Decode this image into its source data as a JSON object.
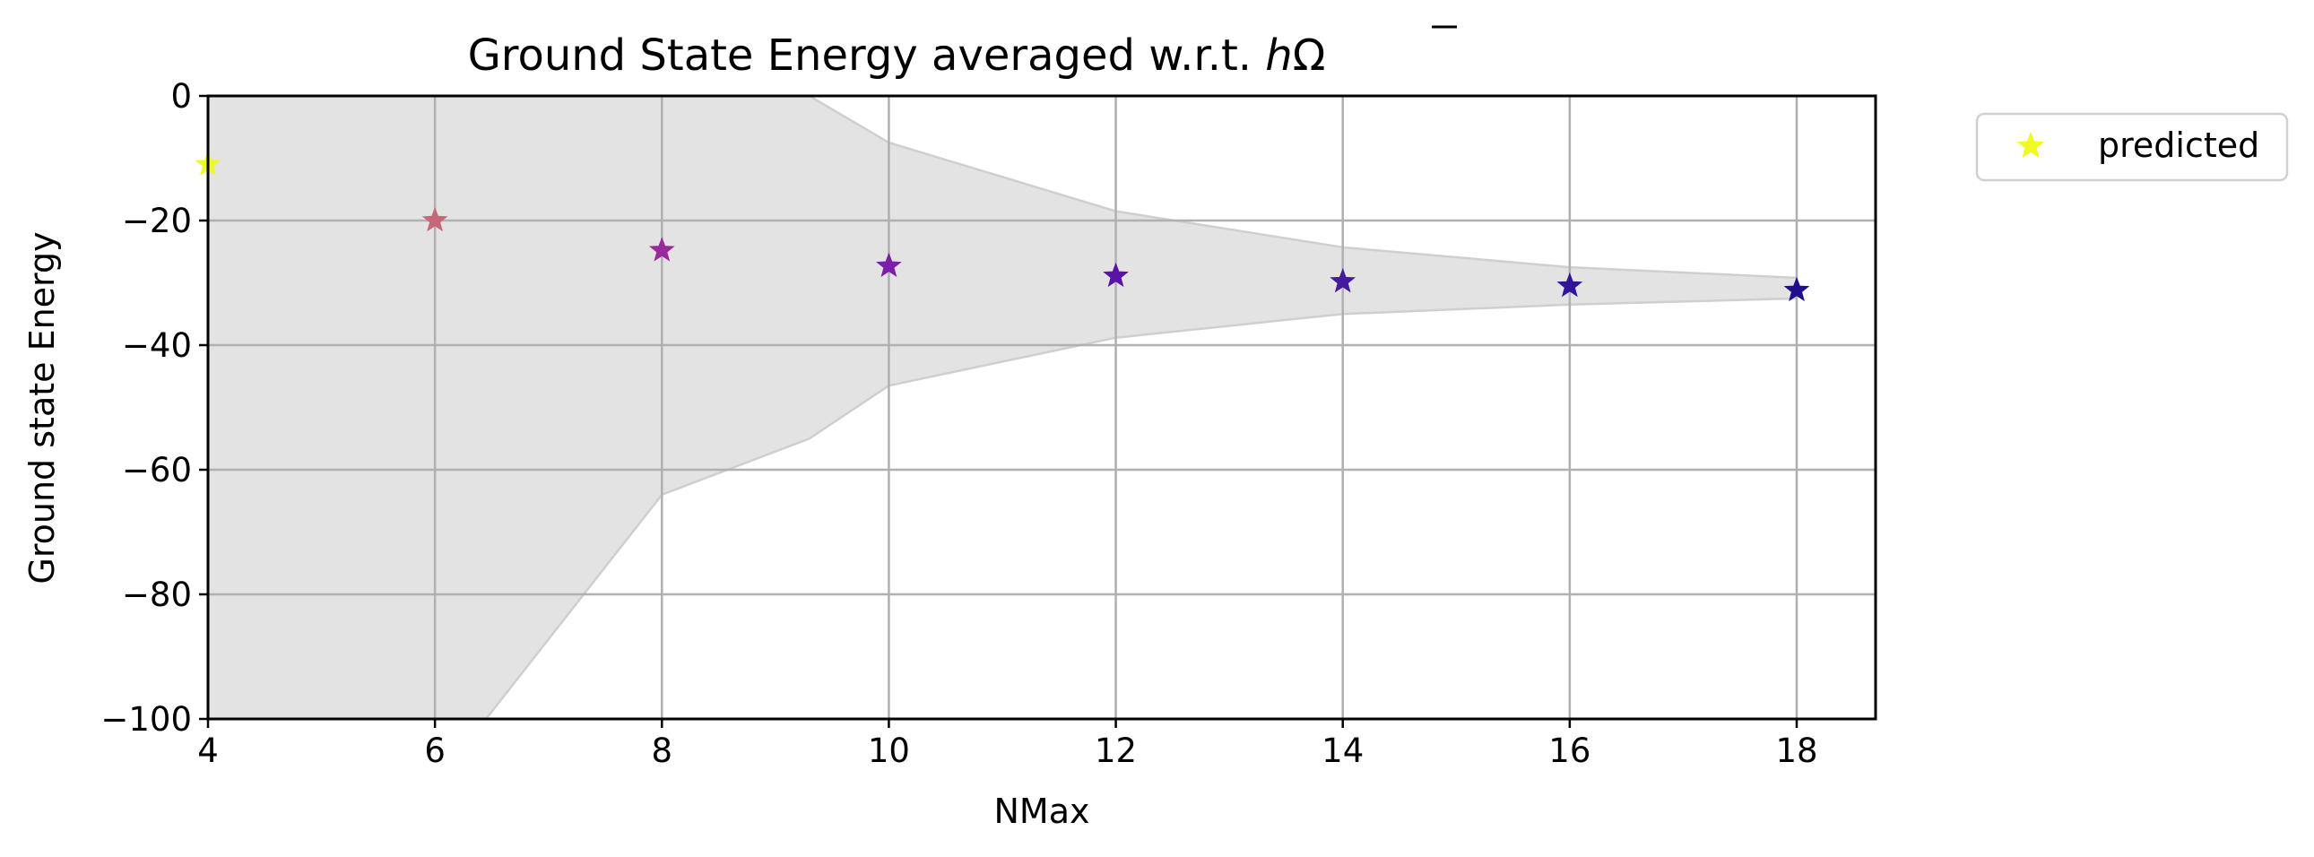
{
  "chart_data": {
    "type": "scatter",
    "title": "Ground State Energy averaged w.r.t. ",
    "title_symbol": "Ω",
    "title_hbar": "h",
    "xlabel": "NMax",
    "ylabel": "Ground state Energy",
    "xlim": [
      4,
      18.7
    ],
    "ylim": [
      -100,
      0
    ],
    "xticks": [
      4,
      6,
      8,
      10,
      12,
      14,
      16,
      18
    ],
    "xtick_labels": [
      "4",
      "6",
      "8",
      "10",
      "12",
      "14",
      "16",
      "18"
    ],
    "yticks": [
      0,
      -20,
      -40,
      -60,
      -80,
      -100
    ],
    "ytick_labels": [
      "0",
      "−20",
      "−40",
      "−60",
      "−80",
      "−100"
    ],
    "grid": true,
    "legend_placement": "outside-top-right",
    "series": [
      {
        "name": "predicted",
        "marker": "star",
        "x": [
          4,
          6,
          8,
          10,
          12,
          14,
          16,
          18
        ],
        "y": [
          -11,
          -20,
          -24.8,
          -27.3,
          -28.9,
          -29.8,
          -30.5,
          -31.2
        ],
        "colors": [
          "#f0f921",
          "#c7687a",
          "#9a2a9c",
          "#7a1fa8",
          "#5b12a6",
          "#461aa0",
          "#32159a",
          "#1f0f8f"
        ]
      }
    ],
    "band": {
      "x": [
        4,
        6,
        6.45,
        8,
        9.3,
        10,
        12,
        14,
        16,
        18
      ],
      "upper": [
        0,
        0,
        0,
        0,
        0,
        -7.5,
        -18.5,
        -24.3,
        -27.5,
        -29.2
      ],
      "lower": [
        -100,
        -100,
        -100,
        -64,
        -55,
        -46.5,
        -38.8,
        -35,
        -33.5,
        -32.5
      ],
      "color": "#e3e3e3",
      "edge_color": "#cfcfcf"
    }
  }
}
